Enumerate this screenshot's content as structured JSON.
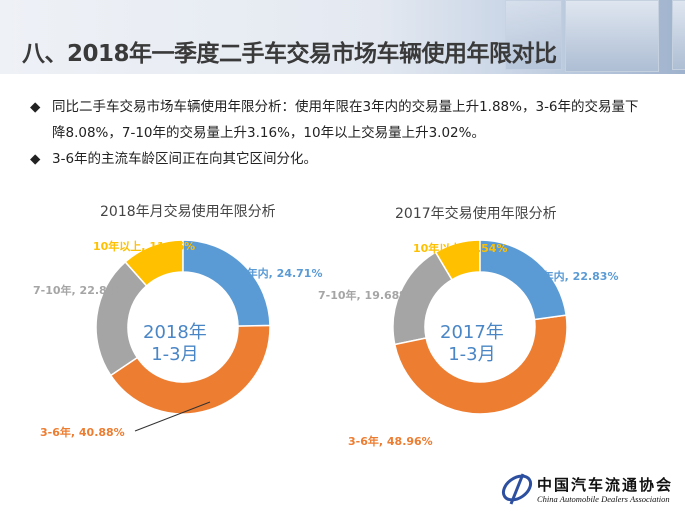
{
  "title": "八、2018年一季度二手车交易市场车辆使用年限对比",
  "bullets": [
    "同比二手车交易市场车辆使用年限分析：使用年限在3年内的交易量上升1.88%，3-6年的交易量下降8.08%，7-10年的交易量上升3.16%，10年以上交易量上升3.02%。",
    "3-6年的主流车龄区间正在向其它区间分化。"
  ],
  "bullet_icon": "diamond-icon",
  "logo": {
    "cn": "中国汽车流通协会",
    "en": "China Automobile Dealers Association",
    "mark": "CADA"
  },
  "colors": {
    "blue": "#5b9bd5",
    "orange": "#ed7d31",
    "gray": "#a5a5a5",
    "yellow": "#ffc000"
  },
  "chart_data": [
    {
      "type": "pie",
      "donut": true,
      "title": "2018年月交易使用年限分析",
      "center_label": [
        "2018年",
        "1-3月"
      ],
      "categories": [
        "3年内",
        "3-6年",
        "7-10年",
        "10年以上"
      ],
      "values": [
        24.71,
        40.88,
        22.84,
        11.56
      ],
      "labels": [
        "3年内, 24.71%",
        "3-6年, 40.88%",
        "7-10年, 22.84%",
        "10年以上, 11.56%"
      ]
    },
    {
      "type": "pie",
      "donut": true,
      "title": "2017年交易使用年限分析",
      "center_label": [
        "2017年",
        "1-3月"
      ],
      "categories": [
        "3年内",
        "3-6年",
        "7-10年",
        "10年以上"
      ],
      "values": [
        22.83,
        48.96,
        19.68,
        8.54
      ],
      "labels": [
        "3年内, 22.83%",
        "3-6年, 48.96%",
        "7-10年, 19.68%",
        "10年以上, 8.54%"
      ]
    }
  ]
}
